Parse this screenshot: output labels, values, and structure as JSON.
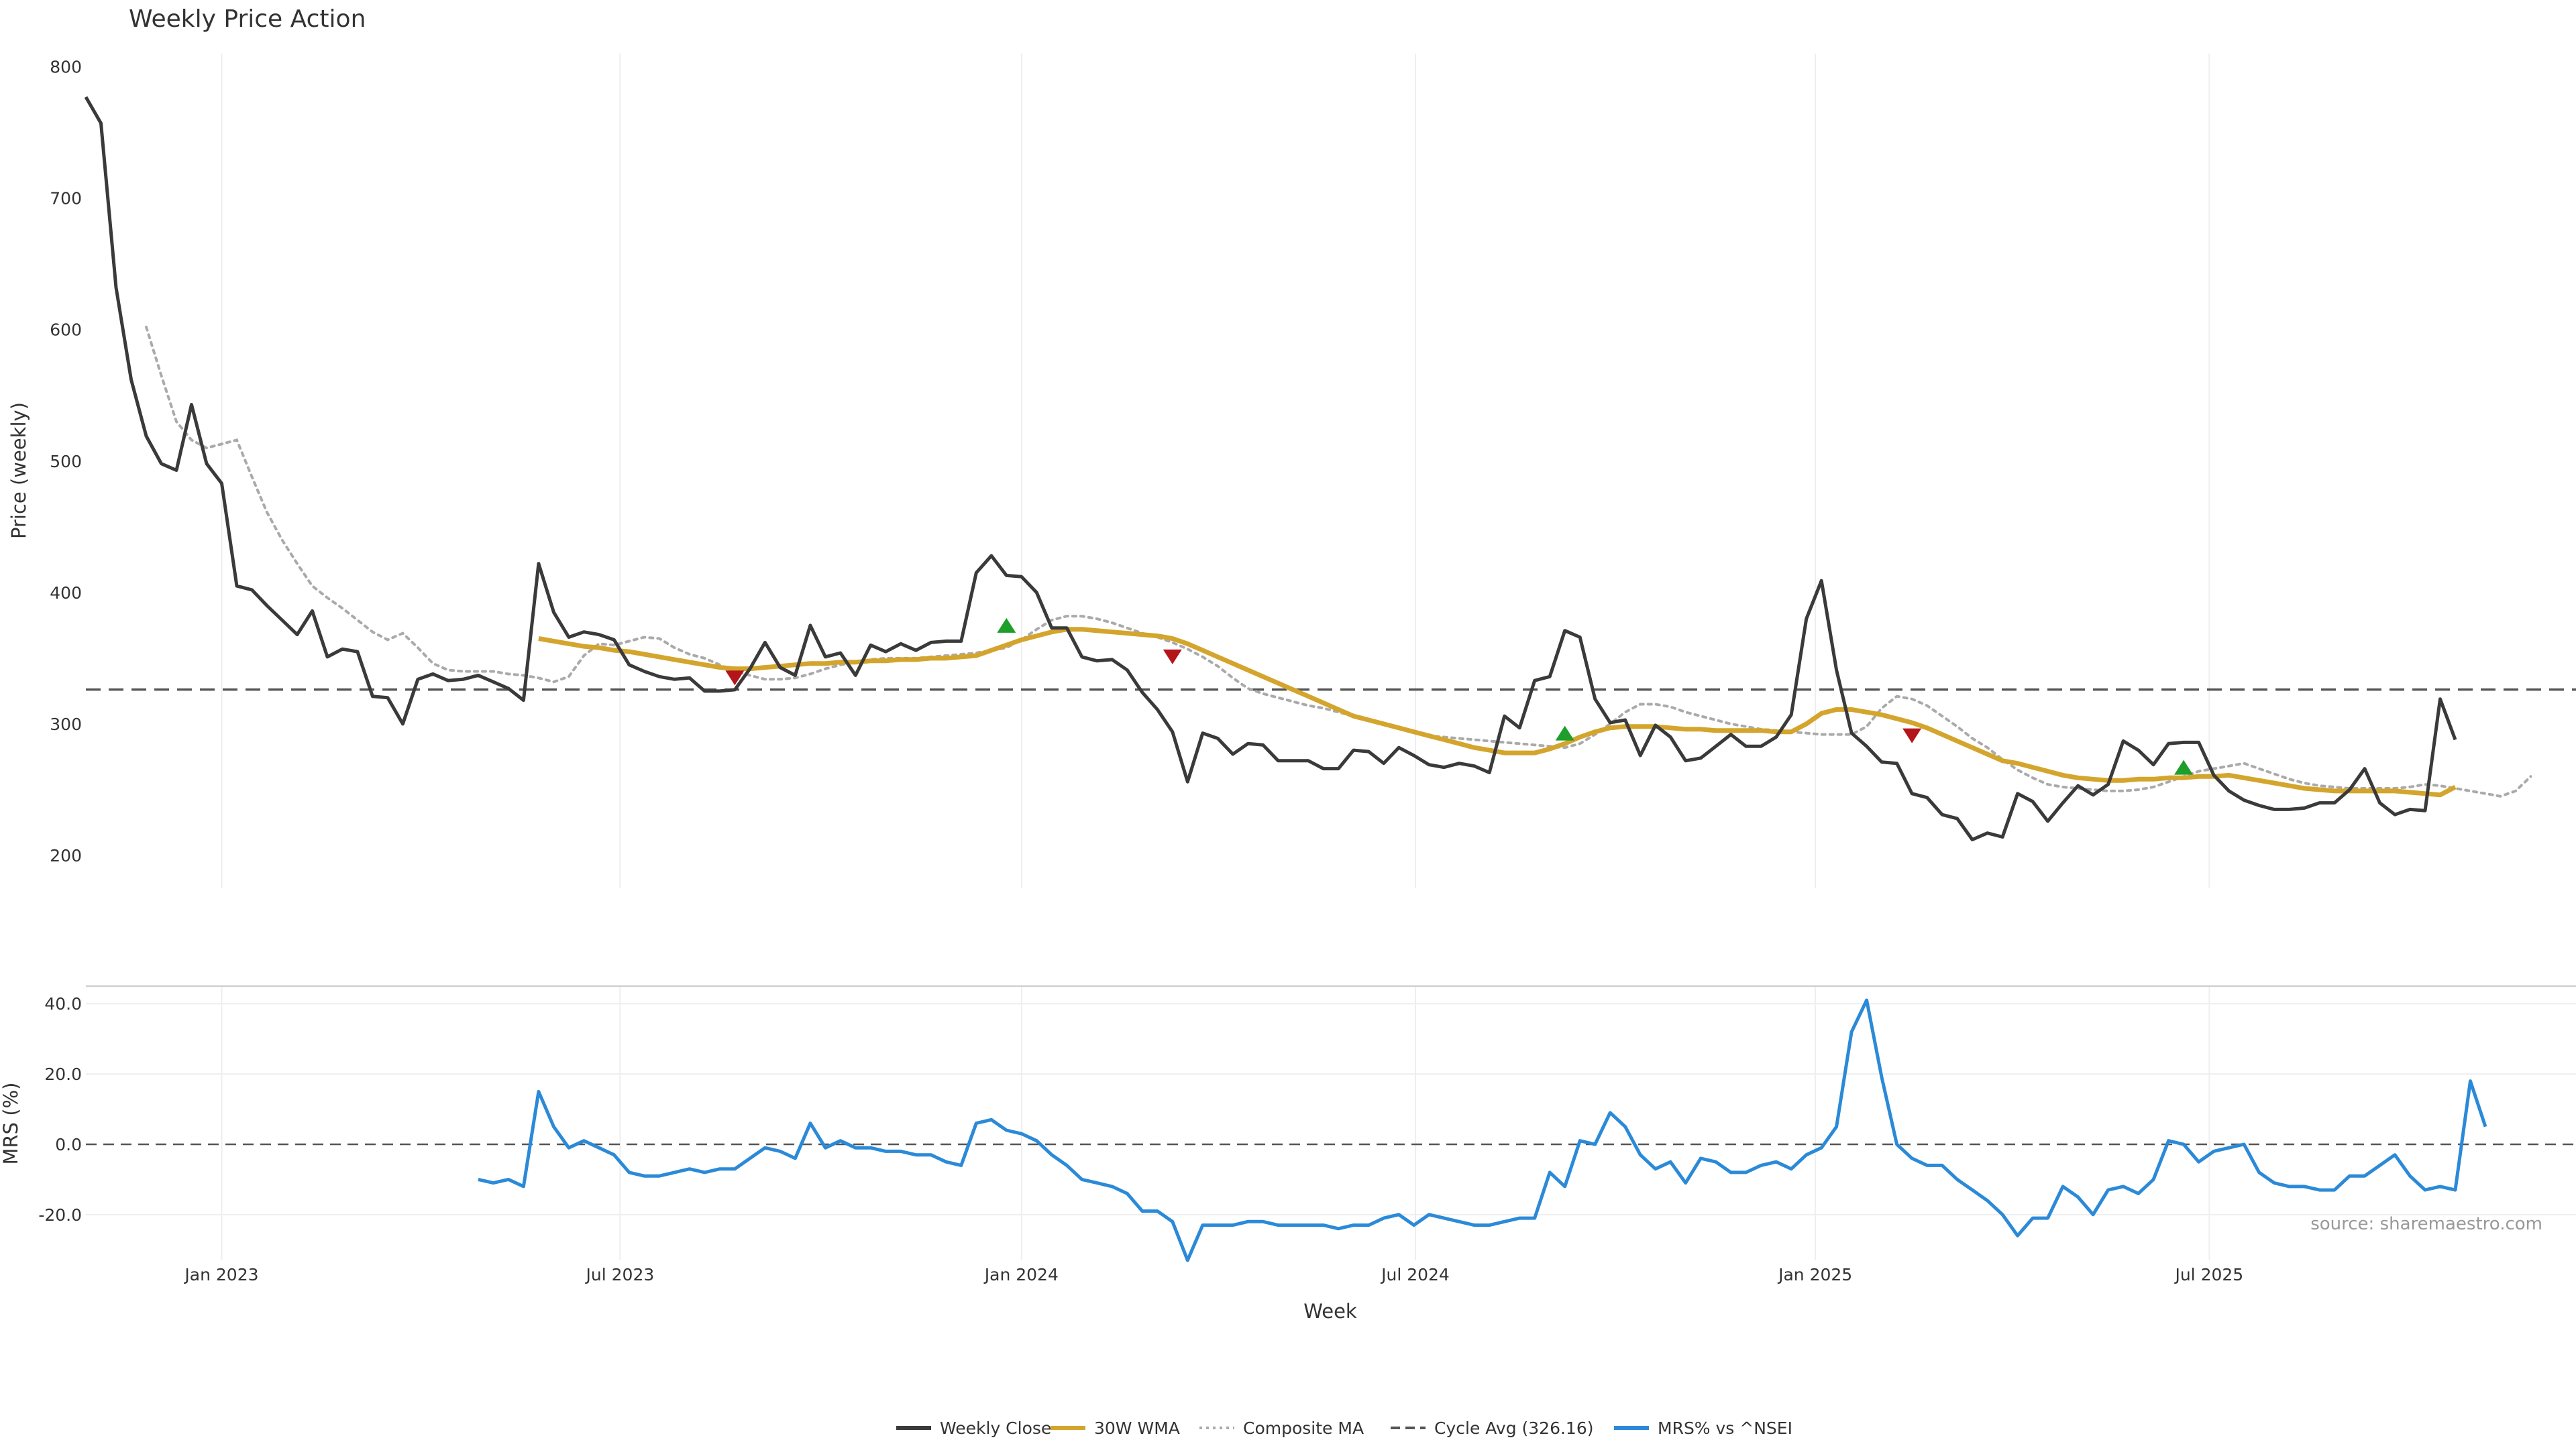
{
  "chart_data": [
    {
      "type": "line",
      "title": "Weekly Price Action",
      "ylabel": "Price (weekly)",
      "ylim": [
        175,
        810
      ],
      "yticks": [
        "200",
        "300",
        "400",
        "500",
        "600",
        "700",
        "800"
      ],
      "ytick_values": [
        200,
        300,
        400,
        500,
        600,
        700,
        800
      ],
      "x_start_week": 0,
      "x_end_week": 165,
      "series": [
        {
          "name": "Weekly Close",
          "color": "#3a3a3a",
          "start_week": 0,
          "values": [
            777,
            757,
            632,
            562,
            519,
            498,
            493,
            543,
            498,
            483,
            405,
            402,
            390,
            379,
            368,
            386,
            351,
            357,
            355,
            321,
            320,
            300,
            334,
            338,
            333,
            334,
            337,
            332,
            327,
            318,
            422,
            385,
            366,
            370,
            368,
            364,
            345,
            340,
            336,
            334,
            335,
            325,
            325,
            326,
            342,
            362,
            343,
            337,
            375,
            351,
            354,
            337,
            360,
            355,
            361,
            356,
            362,
            363,
            363,
            415,
            428,
            413,
            412,
            400,
            373,
            373,
            351,
            348,
            349,
            341,
            324,
            311,
            294,
            256,
            293,
            289,
            277,
            285,
            284,
            272,
            272,
            272,
            266,
            266,
            280,
            279,
            270,
            282,
            276,
            269,
            267,
            270,
            268,
            263,
            306,
            297,
            333,
            336,
            371,
            366,
            319,
            301,
            303,
            276,
            299,
            290,
            272,
            274,
            283,
            292,
            283,
            283,
            290,
            307,
            380,
            409,
            341,
            293,
            283,
            271,
            270,
            247,
            244,
            231,
            228,
            212,
            217,
            214,
            247,
            241,
            226,
            240,
            253,
            246,
            254,
            287,
            280,
            269,
            285,
            286,
            286,
            261,
            249,
            242,
            238,
            235,
            235,
            236,
            240,
            240,
            250,
            266,
            240,
            231,
            235,
            234,
            319,
            288
          ]
        },
        {
          "name": "30W WMA",
          "color": "#d4a52d",
          "start_week": 30,
          "values": [
            365,
            363,
            361,
            359,
            358,
            356,
            355,
            353,
            351,
            349,
            347,
            345,
            343,
            342,
            342,
            343,
            344,
            345,
            346,
            346,
            347,
            347,
            348,
            348,
            349,
            349,
            350,
            350,
            351,
            352,
            356,
            360,
            364,
            367,
            370,
            372,
            372,
            371,
            370,
            369,
            368,
            367,
            365,
            361,
            356,
            351,
            346,
            341,
            336,
            331,
            326,
            321,
            316,
            311,
            306,
            303,
            300,
            297,
            294,
            291,
            288,
            285,
            282,
            280,
            278,
            278,
            278,
            281,
            285,
            290,
            294,
            297,
            298,
            298,
            298,
            297,
            296,
            296,
            295,
            295,
            295,
            295,
            294,
            294,
            300,
            308,
            311,
            311,
            309,
            307,
            304,
            301,
            297,
            292,
            287,
            282,
            277,
            272,
            270,
            267,
            264,
            261,
            259,
            258,
            257,
            257,
            258,
            258,
            259,
            259,
            260,
            260,
            261,
            259,
            257,
            255,
            253,
            251,
            250,
            249,
            249,
            249,
            249,
            249,
            248,
            247,
            246,
            252
          ]
        },
        {
          "name": "Composite MA",
          "color": "#aaaaaa",
          "start_week": 4,
          "values": [
            602,
            565,
            530,
            516,
            510,
            513,
            516,
            488,
            461,
            440,
            422,
            405,
            396,
            388,
            379,
            370,
            364,
            369,
            358,
            346,
            341,
            340,
            340,
            340,
            338,
            337,
            335,
            332,
            336,
            352,
            361,
            360,
            363,
            366,
            365,
            358,
            353,
            350,
            345,
            340,
            337,
            334,
            334,
            335,
            338,
            342,
            345,
            347,
            349,
            350,
            350,
            350,
            351,
            352,
            353,
            354,
            356,
            358,
            364,
            372,
            379,
            382,
            382,
            380,
            377,
            373,
            369,
            366,
            362,
            357,
            351,
            344,
            335,
            327,
            323,
            320,
            317,
            314,
            312,
            309,
            306,
            303,
            300,
            297,
            294,
            291,
            290,
            289,
            288,
            287,
            286,
            285,
            284,
            283,
            282,
            285,
            292,
            300,
            309,
            315,
            315,
            313,
            309,
            306,
            303,
            300,
            298,
            296,
            295,
            294,
            293,
            292,
            292,
            292,
            298,
            312,
            321,
            319,
            314,
            306,
            298,
            289,
            282,
            273,
            265,
            259,
            254,
            252,
            251,
            250,
            249,
            249,
            250,
            252,
            256,
            260,
            264,
            266,
            268,
            270,
            266,
            262,
            258,
            255,
            253,
            252,
            251,
            251,
            251,
            251,
            252,
            254,
            253,
            251,
            249,
            247,
            245,
            249,
            260
          ]
        },
        {
          "name": "Cycle Avg (326.16)",
          "color": "#555555",
          "value": 326.16
        }
      ],
      "signals": [
        {
          "type": "sell",
          "week": 43,
          "value": 335
        },
        {
          "type": "buy",
          "week": 61,
          "value": 375
        },
        {
          "type": "sell",
          "week": 72,
          "value": 351
        },
        {
          "type": "buy",
          "week": 98,
          "value": 293
        },
        {
          "type": "sell",
          "week": 121,
          "value": 291
        },
        {
          "type": "buy",
          "week": 139,
          "value": 267
        }
      ]
    },
    {
      "type": "line",
      "ylabel": "MRS (%)",
      "xlabel": "Week",
      "ylim": [
        -33,
        45
      ],
      "yticks": [
        "40.0",
        "20.0",
        "0.0",
        "-20.0"
      ],
      "ytick_values": [
        40,
        20,
        0,
        -20
      ],
      "xticks": [
        "Jan 2023",
        "Jul 2023",
        "Jan 2024",
        "Jul 2024",
        "Jan 2025",
        "Jul 2025"
      ],
      "xtick_weeks": [
        9,
        35.4,
        62,
        88.1,
        114.6,
        140.7
      ],
      "zero_line": 0,
      "series": [
        {
          "name": "MRS% vs ^NSEI",
          "color": "#2b8ad8",
          "start_week": 26,
          "values": [
            -10,
            -11,
            -10,
            -12,
            15,
            5,
            -1,
            1,
            -1,
            -3,
            -8,
            -9,
            -9,
            -8,
            -7,
            -8,
            -7,
            -7,
            -4,
            -1,
            -2,
            -4,
            6,
            -1,
            1,
            -1,
            -1,
            -2,
            -2,
            -3,
            -3,
            -5,
            -6,
            6,
            7,
            4,
            3,
            1,
            -3,
            -6,
            -10,
            -11,
            -12,
            -14,
            -19,
            -19,
            -22,
            -33,
            -23,
            -23,
            -23,
            -22,
            -22,
            -23,
            -23,
            -23,
            -23,
            -24,
            -23,
            -23,
            -21,
            -20,
            -23,
            -20,
            -21,
            -22,
            -23,
            -23,
            -22,
            -21,
            -21,
            -8,
            -12,
            1,
            0,
            9,
            5,
            -3,
            -7,
            -5,
            -11,
            -4,
            -5,
            -8,
            -8,
            -6,
            -5,
            -7,
            -3,
            -1,
            5,
            32,
            41,
            19,
            0,
            -4,
            -6,
            -6,
            -10,
            -13,
            -16,
            -20,
            -26,
            -21,
            -21,
            -12,
            -15,
            -20,
            -13,
            -12,
            -14,
            -10,
            1,
            0,
            -5,
            -2,
            -1,
            0,
            -8,
            -11,
            -12,
            -12,
            -13,
            -13,
            -9,
            -9,
            -6,
            -3,
            -9,
            -13,
            -12,
            -13,
            18,
            5
          ]
        }
      ]
    }
  ],
  "legend": [
    {
      "label": "Weekly Close",
      "color": "#3a3a3a",
      "style": "solid"
    },
    {
      "label": "30W WMA",
      "color": "#d4a52d",
      "style": "solid"
    },
    {
      "label": "Composite MA",
      "color": "#aaaaaa",
      "style": "dotted"
    },
    {
      "label": "Cycle Avg (326.16)",
      "color": "#555555",
      "style": "dashed"
    },
    {
      "label": "MRS% vs ^NSEI",
      "color": "#2b8ad8",
      "style": "solid"
    }
  ],
  "source": "source: sharemaestro.com",
  "colors": {
    "buy": "#1e9e2a",
    "sell": "#b3151b",
    "grid": "#eeeeee"
  }
}
